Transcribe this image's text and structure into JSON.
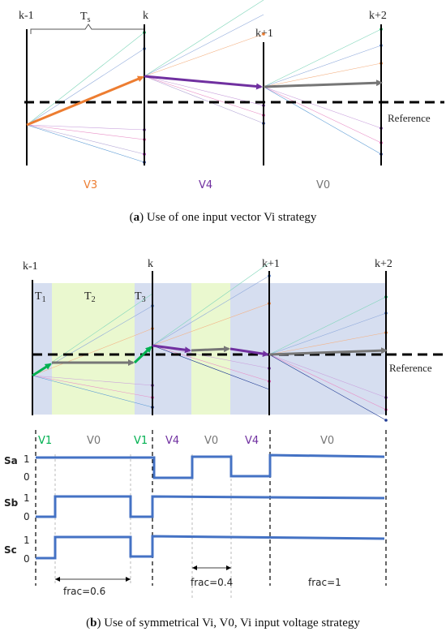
{
  "colors": {
    "orange": "#ED7D31",
    "purple": "#7030A0",
    "gray": "#767676",
    "green": "#00B050",
    "blue": "#4472C4",
    "band_blue": "#D6DEF0",
    "band_green": "#EAF8CF"
  },
  "top": {
    "labels": {
      "k_minus_1": "k-1",
      "k": "k",
      "k_plus_1": "k+1",
      "k_plus_2": "k+2"
    },
    "ts": "T",
    "ts_sub": "s",
    "reference": "Reference",
    "vectors": {
      "first": "V3",
      "second": "V4",
      "third": "V0"
    },
    "caption_letter": "a",
    "caption_text": "Use of one input vector Vi strategy"
  },
  "bottom": {
    "labels": {
      "k_minus_1": "k-1",
      "k": "k",
      "k_plus_1": "k+1",
      "k_plus_2": "k+2"
    },
    "t1": "T",
    "t1_sub": "1",
    "t2": "T",
    "t2_sub": "2",
    "t3": "T",
    "t3_sub": "3",
    "reference": "Reference",
    "sequence": [
      "V1",
      "V0",
      "V1",
      "V4",
      "V0",
      "V4",
      "V0"
    ],
    "signals": [
      "Sa",
      "Sb",
      "Sc"
    ],
    "level_high": "1",
    "level_low": "0",
    "fracs": [
      "frac=0.6",
      "frac=0.4",
      "frac=1"
    ],
    "caption_letter": "b",
    "caption_text": "Use of symmetrical Vi, V0, Vi input voltage strategy"
  },
  "icons": {
    "arrow": "arrowhead-icon"
  }
}
